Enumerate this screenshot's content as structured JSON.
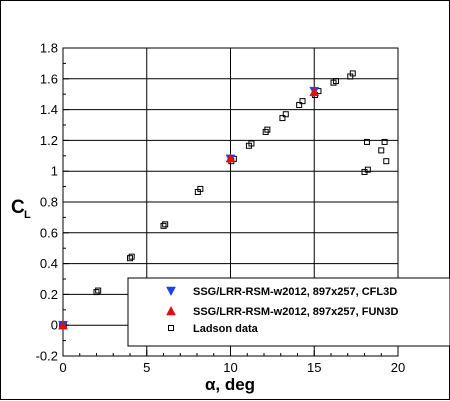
{
  "chart_data": {
    "type": "scatter",
    "xlabel_symbol": "α",
    "xlabel_text": ", deg",
    "ylabel_main": "C",
    "ylabel_sub": "L",
    "xlim": [
      0,
      20
    ],
    "ylim": [
      -0.2,
      1.8
    ],
    "xticks": [
      0,
      5,
      10,
      15,
      20
    ],
    "yticks": [
      -0.2,
      0,
      0.2,
      0.4,
      0.6,
      0.8,
      1,
      1.2,
      1.4,
      1.6,
      1.8
    ],
    "xtick_labels": [
      "0",
      "5",
      "10",
      "15",
      "20"
    ],
    "ytick_labels": [
      "-0.2",
      "0",
      "0.2",
      "0.4",
      "0.6",
      "0.8",
      "1",
      "1.2",
      "1.4",
      "1.6",
      "1.8"
    ],
    "grid": true,
    "legend_position": "bottom-right",
    "series": [
      {
        "name": "SSG/LRR-RSM-w2012, 897x257, CFL3D",
        "marker": "triangle-down",
        "color": "#1f3ff5",
        "x": [
          0,
          10,
          15
        ],
        "y": [
          0.0,
          1.08,
          1.52
        ]
      },
      {
        "name": "SSG/LRR-RSM-w2012, 897x257, FUN3D",
        "marker": "triangle-up",
        "color": "#e01010",
        "x": [
          0,
          10,
          15
        ],
        "y": [
          0.0,
          1.085,
          1.515
        ]
      },
      {
        "name": "Ladson data",
        "marker": "square-open",
        "color": "#000000",
        "x": [
          -0.05,
          0.05,
          2.0,
          2.1,
          4.0,
          4.1,
          6.0,
          6.1,
          8.05,
          8.2,
          10.05,
          10.2,
          11.1,
          11.25,
          12.1,
          12.2,
          13.1,
          13.3,
          14.1,
          14.3,
          15.05,
          15.25,
          16.15,
          16.3,
          17.15,
          17.3,
          18.0,
          18.2,
          18.15,
          19.0,
          19.2,
          19.3
        ],
        "y": [
          0.0,
          0.005,
          0.215,
          0.225,
          0.435,
          0.445,
          0.645,
          0.655,
          0.865,
          0.885,
          1.065,
          1.08,
          1.165,
          1.18,
          1.255,
          1.27,
          1.345,
          1.37,
          1.43,
          1.455,
          1.495,
          1.52,
          1.575,
          1.585,
          1.615,
          1.635,
          0.995,
          1.01,
          1.19,
          1.135,
          1.19,
          1.065
        ]
      }
    ]
  }
}
